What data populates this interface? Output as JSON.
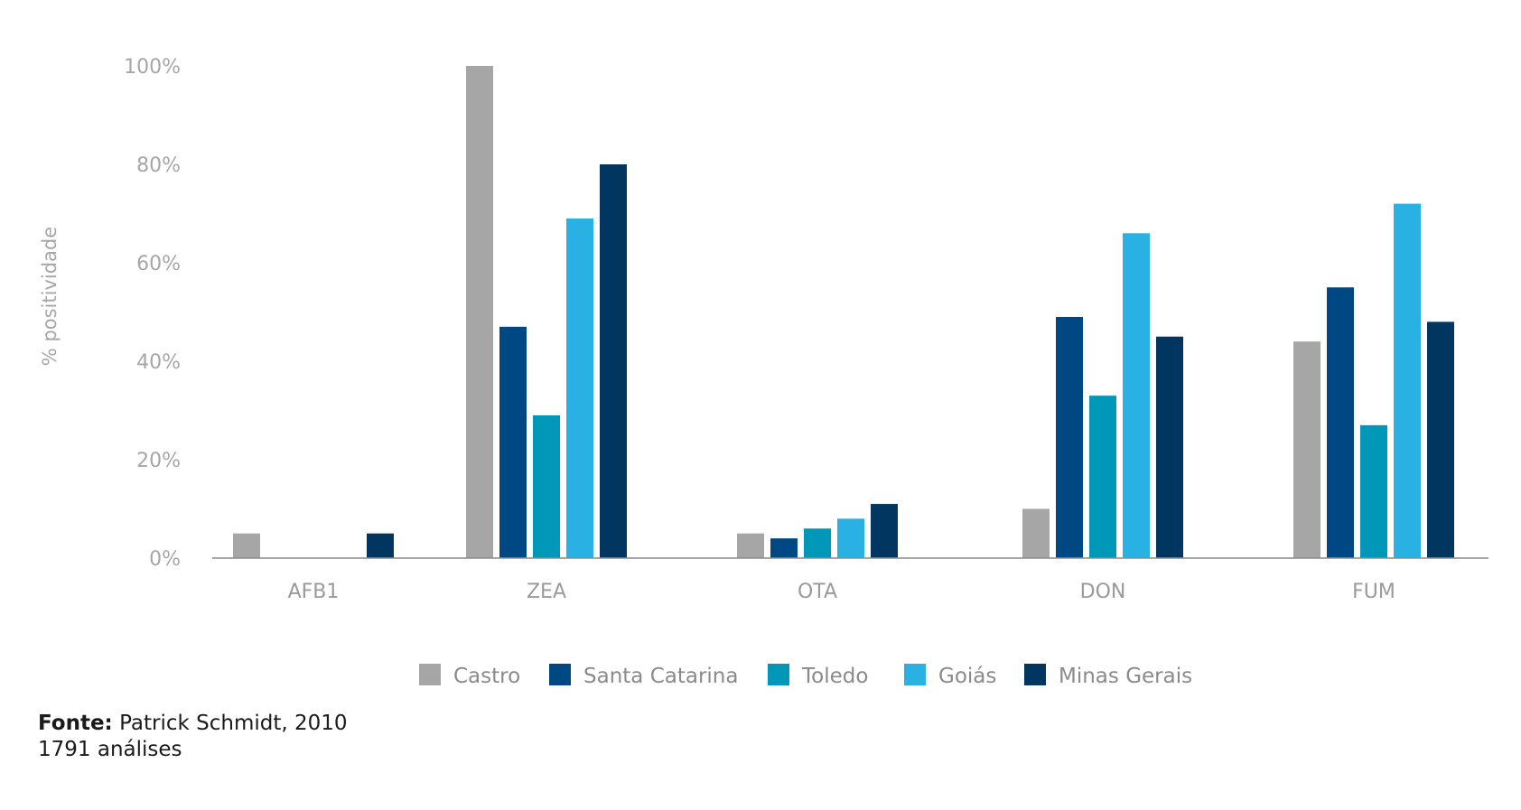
{
  "chart_data": {
    "type": "bar",
    "ylabel": "% positividade",
    "ylim": [
      0,
      100
    ],
    "yticks": [
      "0%",
      "20%",
      "40%",
      "60%",
      "80%",
      "100%"
    ],
    "ytick_values": [
      0,
      20,
      40,
      60,
      80,
      100
    ],
    "categories": [
      "AFB1",
      "ZEA",
      "OTA",
      "DON",
      "FUM"
    ],
    "series": [
      {
        "name": "Castro",
        "color": "#a6a6a6",
        "values": [
          5,
          100,
          5,
          10,
          44
        ]
      },
      {
        "name": "Santa Catarina",
        "color": "#004883",
        "values": [
          0,
          47,
          4,
          49,
          55
        ]
      },
      {
        "name": "Toledo",
        "color": "#0097b8",
        "values": [
          0,
          29,
          6,
          33,
          27
        ]
      },
      {
        "name": "Goiás",
        "color": "#28b1e2",
        "values": [
          0,
          69,
          8,
          66,
          72
        ]
      },
      {
        "name": "Minas Gerais",
        "color": "#00365f",
        "values": [
          5,
          80,
          11,
          45,
          48
        ]
      }
    ],
    "legend_position": "bottom",
    "grid": false
  },
  "footer": {
    "source_label": "Fonte:",
    "source_text": "Patrick Schmidt, 2010",
    "analyses": "1791 análises"
  }
}
